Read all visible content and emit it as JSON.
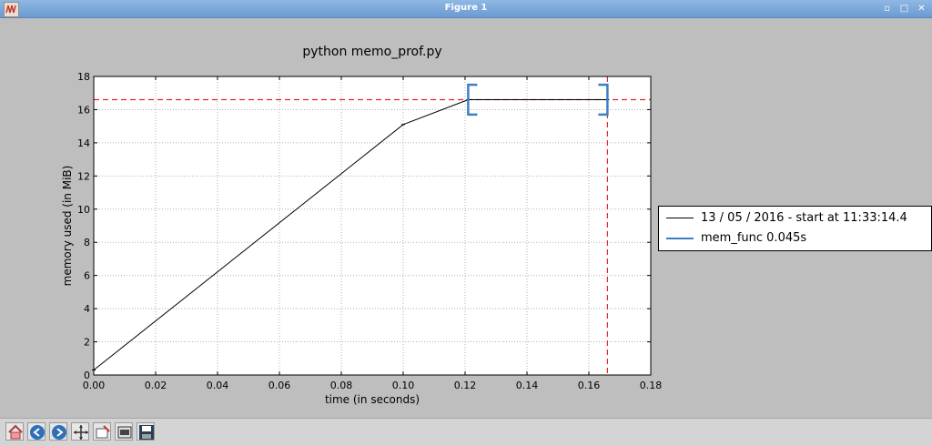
{
  "window": {
    "title": "Figure 1"
  },
  "chart_data": {
    "type": "line",
    "title": "python memo_prof.py",
    "xlabel": "time (in seconds)",
    "ylabel": "memory used (in MiB)",
    "xlim": [
      0.0,
      0.18
    ],
    "ylim": [
      0,
      18
    ],
    "x_ticks": [
      "0.00",
      "0.02",
      "0.04",
      "0.06",
      "0.08",
      "0.10",
      "0.12",
      "0.14",
      "0.16",
      "0.18"
    ],
    "y_ticks": [
      "0",
      "2",
      "4",
      "6",
      "8",
      "10",
      "12",
      "14",
      "16",
      "18"
    ],
    "grid": true,
    "series": [
      {
        "name": "13 / 05 / 2016 - start at 11:33:14.4",
        "color": "#000000",
        "x": [
          0.0,
          0.1,
          0.121,
          0.166
        ],
        "y": [
          0.3,
          15.1,
          16.6,
          16.6
        ]
      }
    ],
    "max_lines": {
      "color": "#e0262b",
      "x": 0.166,
      "y": 16.6
    },
    "brackets": [
      {
        "name": "mem_func 0.045s",
        "color": "#3b7fc4",
        "x_start": 0.121,
        "x_end": 0.166,
        "y_low": 15.7,
        "y_high": 17.5
      }
    ],
    "legend_position": "right"
  },
  "legend": {
    "entries": [
      "13 / 05 / 2016 - start at 11:33:14.4",
      "mem_func 0.045s"
    ]
  },
  "toolbar": {
    "buttons": [
      "home-icon",
      "back-icon",
      "forward-icon",
      "pan-icon",
      "zoom-icon",
      "configure-icon",
      "save-icon"
    ]
  }
}
